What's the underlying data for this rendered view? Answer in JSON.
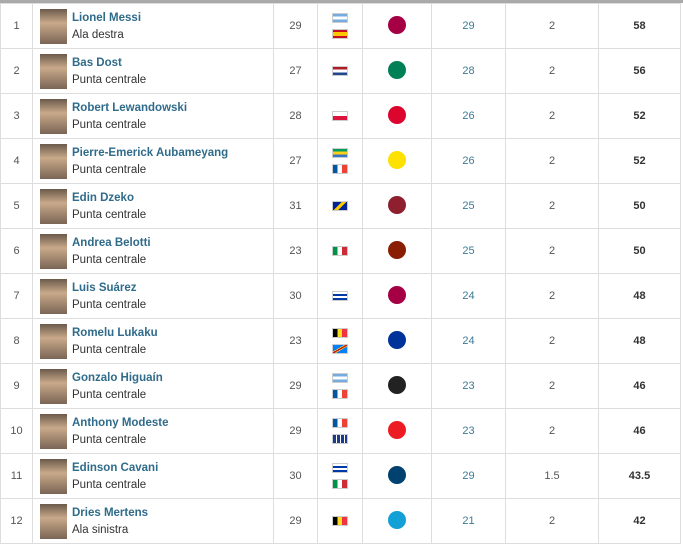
{
  "rows": [
    {
      "rank": "1",
      "name": "Lionel Messi",
      "position": "Ala destra",
      "age": "29",
      "flags": [
        "argentina",
        "spain"
      ],
      "club": "barcelona",
      "goals": "29",
      "coef": "2",
      "points": "58"
    },
    {
      "rank": "2",
      "name": "Bas Dost",
      "position": "Punta centrale",
      "age": "27",
      "flags": [
        "netherlands"
      ],
      "club": "sporting",
      "goals": "28",
      "coef": "2",
      "points": "56"
    },
    {
      "rank": "3",
      "name": "Robert Lewandowski",
      "position": "Punta centrale",
      "age": "28",
      "flags": [
        "poland"
      ],
      "club": "bayern",
      "goals": "26",
      "coef": "2",
      "points": "52"
    },
    {
      "rank": "4",
      "name": "Pierre-Emerick Aubameyang",
      "position": "Punta centrale",
      "age": "27",
      "flags": [
        "gabon",
        "france"
      ],
      "club": "dortmund",
      "goals": "26",
      "coef": "2",
      "points": "52"
    },
    {
      "rank": "5",
      "name": "Edin Dzeko",
      "position": "Punta centrale",
      "age": "31",
      "flags": [
        "bosnia"
      ],
      "club": "roma",
      "goals": "25",
      "coef": "2",
      "points": "50"
    },
    {
      "rank": "6",
      "name": "Andrea Belotti",
      "position": "Punta centrale",
      "age": "23",
      "flags": [
        "italy"
      ],
      "club": "torino",
      "goals": "25",
      "coef": "2",
      "points": "50"
    },
    {
      "rank": "7",
      "name": "Luis Suárez",
      "position": "Punta centrale",
      "age": "30",
      "flags": [
        "uruguay"
      ],
      "club": "barcelona",
      "goals": "24",
      "coef": "2",
      "points": "48"
    },
    {
      "rank": "8",
      "name": "Romelu Lukaku",
      "position": "Punta centrale",
      "age": "23",
      "flags": [
        "belgium",
        "dr-congo"
      ],
      "club": "everton",
      "goals": "24",
      "coef": "2",
      "points": "48"
    },
    {
      "rank": "9",
      "name": "Gonzalo Higuaín",
      "position": "Punta centrale",
      "age": "29",
      "flags": [
        "argentina",
        "france"
      ],
      "club": "juventus",
      "goals": "23",
      "coef": "2",
      "points": "46"
    },
    {
      "rank": "10",
      "name": "Anthony Modeste",
      "position": "Punta centrale",
      "age": "29",
      "flags": [
        "france",
        "guadeloupe"
      ],
      "club": "koln",
      "goals": "23",
      "coef": "2",
      "points": "46"
    },
    {
      "rank": "11",
      "name": "Edinson Cavani",
      "position": "Punta centrale",
      "age": "30",
      "flags": [
        "uruguay",
        "italy"
      ],
      "club": "psg",
      "goals": "29",
      "coef": "1.5",
      "points": "43.5"
    },
    {
      "rank": "12",
      "name": "Dries Mertens",
      "position": "Ala sinistra",
      "age": "29",
      "flags": [
        "belgium"
      ],
      "club": "napoli",
      "goals": "21",
      "coef": "2",
      "points": "42"
    }
  ],
  "flag_styles": {
    "argentina": "linear-gradient(#74acdf 33%,#fff 33% 66%,#74acdf 66%)",
    "spain": "linear-gradient(#c60b1e 25%,#ffc400 25% 75%,#c60b1e 75%)",
    "netherlands": "linear-gradient(#ae1c28 33%,#fff 33% 66%,#21468b 66%)",
    "poland": "linear-gradient(#fff 50%,#dc143c 50%)",
    "gabon": "linear-gradient(#009e60 33%,#fcd116 33% 66%,#3a75c4 66%)",
    "france": "linear-gradient(90deg,#0055a4 33%,#fff 33% 66%,#ef4135 66%)",
    "bosnia": "linear-gradient(135deg,#002395 40%,#fecb00 40% 60%,#002395 60%)",
    "italy": "linear-gradient(90deg,#009246 33%,#fff 33% 66%,#ce2b37 66%)",
    "uruguay": "repeating-linear-gradient(#fff 0 2px,#0038a8 2px 4px)",
    "belgium": "linear-gradient(90deg,#000 33%,#fdda24 33% 66%,#ef3340 66%)",
    "dr-congo": "linear-gradient(150deg,#007fff 40%,#f7d618 40% 45%,#ce1021 45% 55%,#f7d618 55% 60%,#007fff 60%)",
    "guadeloupe": "repeating-linear-gradient(90deg,#1a3a8a 0 3px,#fff 3px 4px)"
  },
  "club_colors": {
    "barcelona": "#a50044",
    "sporting": "#008057",
    "bayern": "#dc052d",
    "dortmund": "#fde100",
    "roma": "#8e1f2f",
    "torino": "#8a1e03",
    "everton": "#003399",
    "juventus": "#222222",
    "koln": "#ed1c24",
    "psg": "#004170",
    "napoli": "#12a0d7"
  }
}
